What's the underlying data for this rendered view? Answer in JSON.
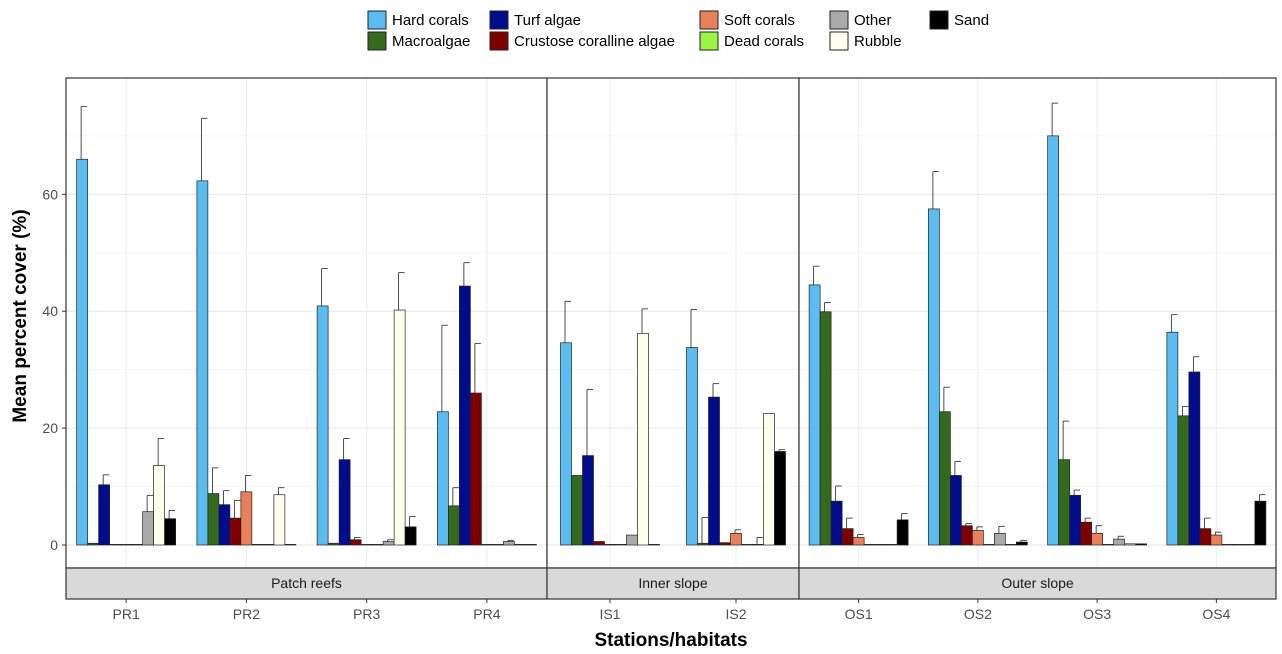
{
  "chart_data": {
    "type": "bar",
    "title": "",
    "xlabel": "Stations/habitats",
    "ylabel": "Mean percent cover (%)",
    "ylim": [
      0,
      79
    ],
    "yticks": [
      0,
      20,
      40,
      60
    ],
    "grid": true,
    "legend_position": "top",
    "categories": [
      "Hard corals",
      "Macroalgae",
      "Turf algae",
      "Crustose coralline algae",
      "Soft corals",
      "Dead corals",
      "Other",
      "Rubble",
      "Sand"
    ],
    "colors": [
      "#5bbcf2",
      "#356a1e",
      "#000c8c",
      "#7d0000",
      "#e8805a",
      "#9cf542",
      "#aaaaaa",
      "#fffff0",
      "#000000"
    ],
    "legend": [
      {
        "name": "Hard corals",
        "color": "#5bbcf2"
      },
      {
        "name": "Macroalgae",
        "color": "#356a1e"
      },
      {
        "name": "Turf algae",
        "color": "#000c8c"
      },
      {
        "name": "Crustose coralline algae",
        "color": "#7d0000"
      },
      {
        "name": "Soft corals",
        "color": "#e8805a"
      },
      {
        "name": "Dead corals",
        "color": "#9cf542"
      },
      {
        "name": "Other",
        "color": "#aaaaaa"
      },
      {
        "name": "Rubble",
        "color": "#fffff0"
      },
      {
        "name": "Sand",
        "color": "#000000"
      }
    ],
    "panels": [
      {
        "name": "Patch reefs",
        "stations": [
          {
            "name": "PR1",
            "values": [
              66,
              0.3,
              10.3,
              0.1,
              0,
              0,
              5.7,
              13.6,
              4.5
            ],
            "errors": [
              9,
              0,
              1.7,
              0,
              0,
              0,
              2.8,
              4.6,
              1.4
            ]
          },
          {
            "name": "PR2",
            "values": [
              62.3,
              8.8,
              6.9,
              4.6,
              9.1,
              0,
              0,
              8.6,
              0
            ],
            "errors": [
              10.7,
              4.4,
              2.4,
              3,
              2.8,
              0,
              0,
              1.2,
              0
            ]
          },
          {
            "name": "PR3",
            "values": [
              40.9,
              0.3,
              14.6,
              0.9,
              0,
              0,
              0.6,
              40.2,
              3.1
            ],
            "errors": [
              6.4,
              0,
              3.6,
              0.4,
              0,
              0,
              0.3,
              6.4,
              1.8
            ]
          },
          {
            "name": "PR4",
            "values": [
              22.8,
              6.7,
              44.3,
              26,
              0,
              0,
              0.6,
              0,
              0
            ],
            "errors": [
              14.8,
              3.1,
              4,
              8.5,
              0,
              0,
              0.2,
              0,
              0
            ]
          }
        ]
      },
      {
        "name": "Inner slope",
        "stations": [
          {
            "name": "IS1",
            "values": [
              34.6,
              11.9,
              15.3,
              0.6,
              0,
              0,
              1.7,
              36.2,
              0
            ],
            "errors": [
              7.1,
              0,
              11.3,
              0,
              0,
              0,
              0,
              4.2,
              0
            ]
          },
          {
            "name": "IS2",
            "values": [
              33.8,
              0.3,
              25.3,
              0.4,
              2,
              0,
              0,
              22.5,
              16
            ],
            "errors": [
              6.5,
              4.4,
              2.3,
              0,
              0.6,
              0,
              1.3,
              0,
              0.3
            ]
          }
        ]
      },
      {
        "name": "Outer slope",
        "stations": [
          {
            "name": "OS1",
            "values": [
              44.5,
              39.9,
              7.5,
              2.8,
              1.3,
              0,
              0,
              0,
              4.3
            ],
            "errors": [
              3.2,
              1.6,
              2.6,
              1.8,
              0.5,
              0,
              0,
              0,
              1.1
            ]
          },
          {
            "name": "OS2",
            "values": [
              57.5,
              22.8,
              11.9,
              3.3,
              2.5,
              0,
              2,
              0,
              0.5
            ],
            "errors": [
              6.4,
              4.2,
              2.4,
              0.4,
              0.6,
              0,
              1.2,
              0,
              0.3
            ]
          },
          {
            "name": "OS3",
            "values": [
              70,
              14.6,
              8.5,
              3.9,
              2,
              0,
              1,
              0.2,
              0.2
            ],
            "errors": [
              5.6,
              6.6,
              0.9,
              0.7,
              1.3,
              0,
              0.5,
              0,
              0
            ]
          },
          {
            "name": "OS4",
            "values": [
              36.4,
              22.1,
              29.6,
              2.8,
              1.7,
              0,
              0,
              0,
              7.5
            ],
            "errors": [
              3,
              1.6,
              2.6,
              1.8,
              0.5,
              0,
              0,
              0,
              1.1
            ]
          }
        ]
      }
    ]
  }
}
